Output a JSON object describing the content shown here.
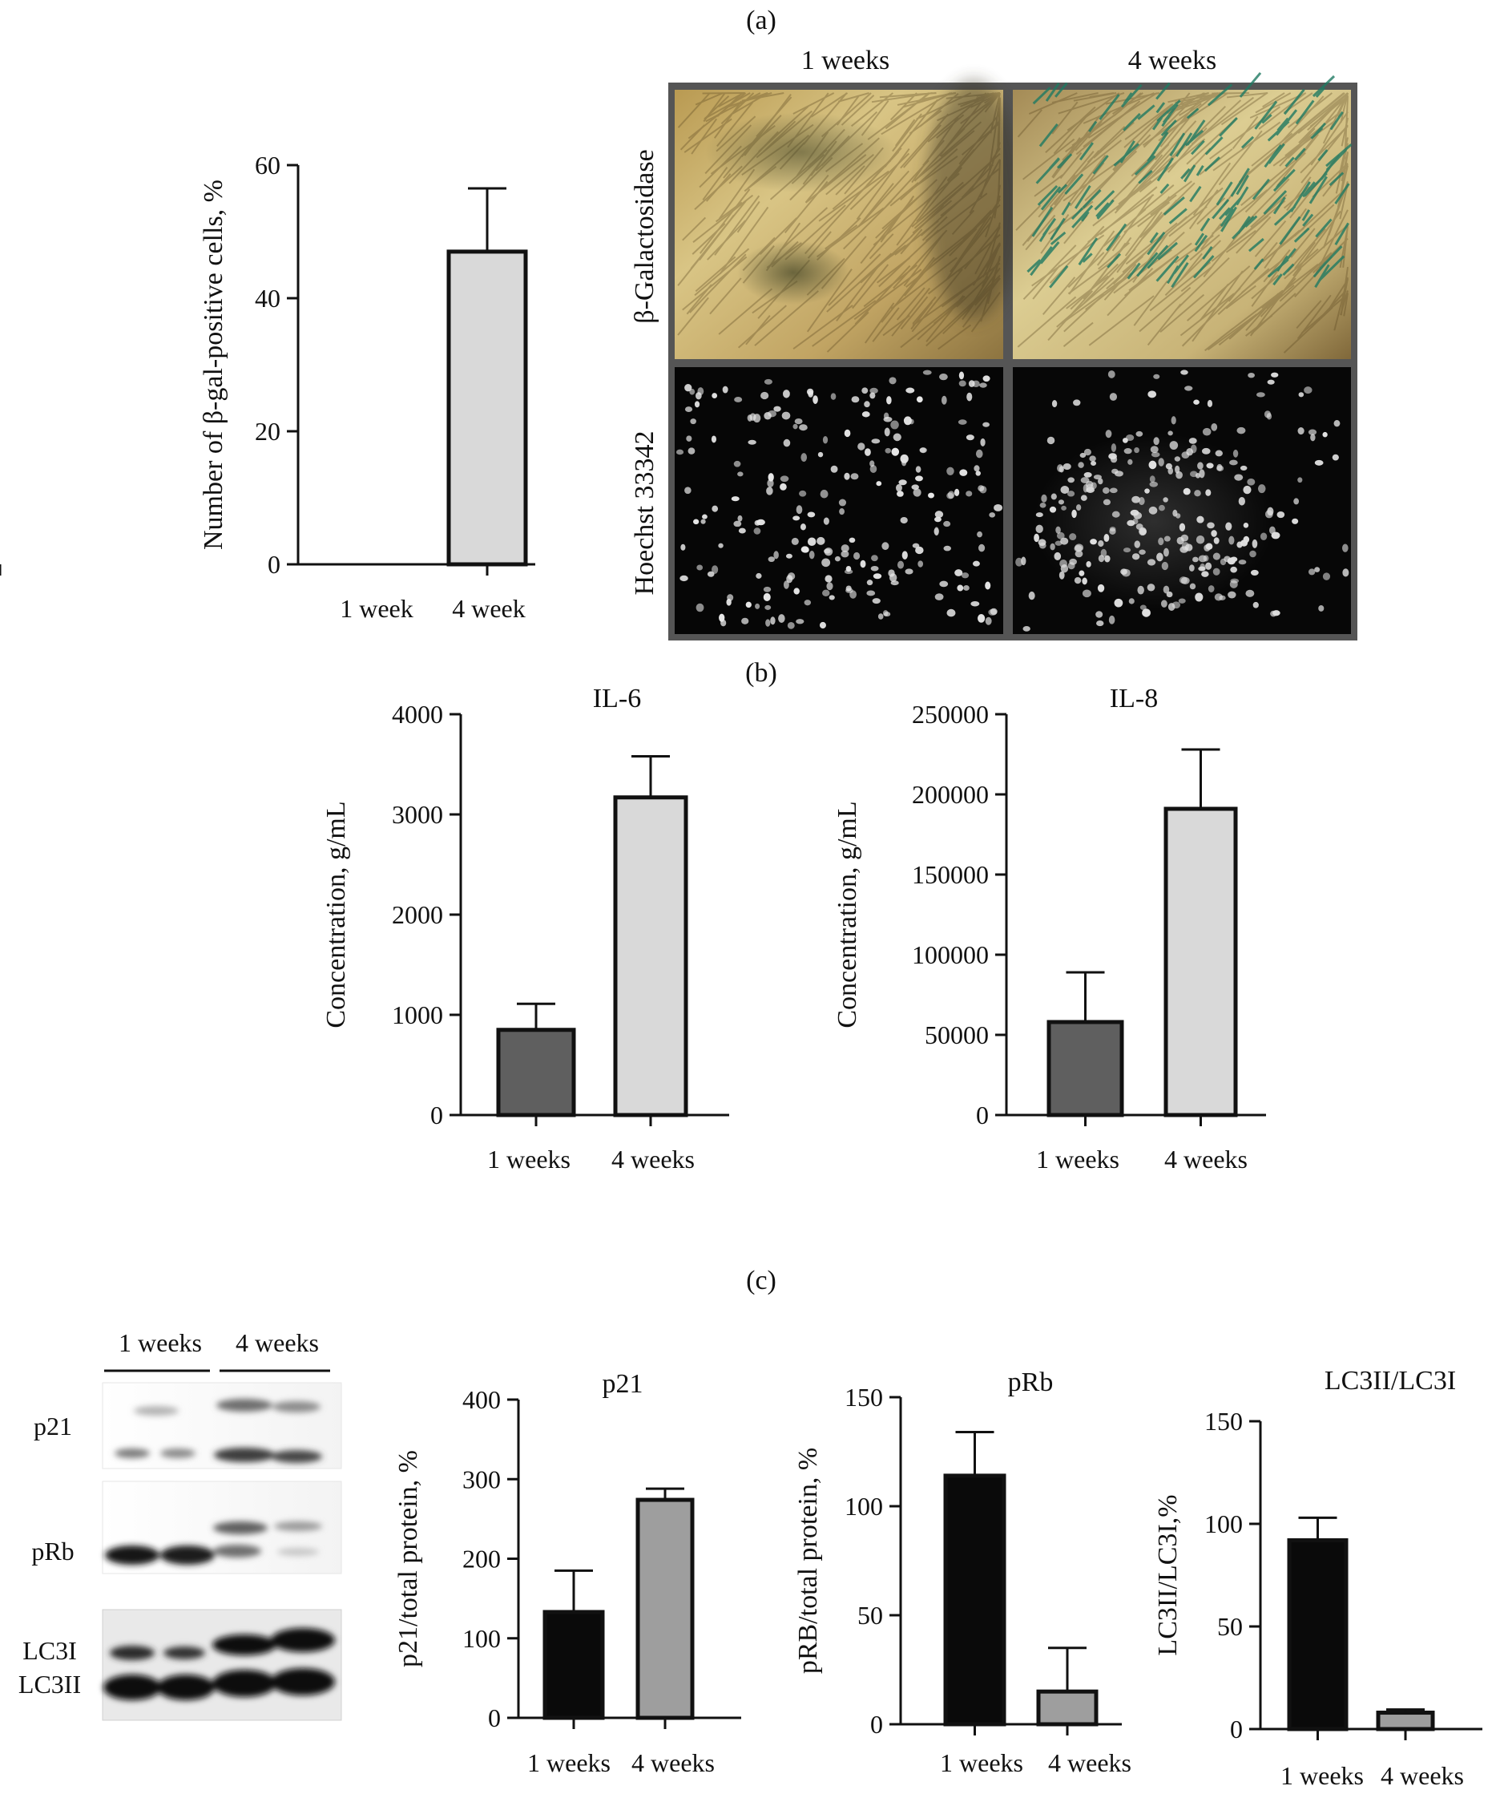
{
  "panel_labels": {
    "a": "(a)",
    "b": "(b)",
    "c": "(c)"
  },
  "micrographs": {
    "col_labels": [
      "1 weeks",
      "4 weeks"
    ],
    "row_labels": [
      "β-Galactosidase",
      "Hoechst 33342"
    ]
  },
  "western_blot": {
    "group_labels": [
      "1 weeks",
      "4 weeks"
    ],
    "band_labels": {
      "p21": "p21",
      "prb": "pRb",
      "lc3i": "LC3I",
      "lc3ii": "LC3II"
    }
  },
  "colors": {
    "light_bar": "#d9d9d9",
    "dark_gray_bar": "#5f5f5f",
    "black_bar": "#0a0a0a",
    "mid_gray_bar": "#9e9e9e",
    "axis": "#111111"
  },
  "chart_data": [
    {
      "id": "bgal",
      "type": "bar",
      "title": "",
      "categories": [
        "1 week",
        "4 week"
      ],
      "values": [
        0,
        47
      ],
      "errors": [
        0,
        9.5
      ],
      "ylabel": "Number of β-gal-positive cells, %",
      "ylim": [
        0,
        60
      ],
      "yticks": [
        0,
        20,
        40,
        60
      ],
      "ytick_labels": [
        "0",
        "20",
        "40",
        "60"
      ],
      "bar_colors": [
        "light_bar",
        "light_bar"
      ]
    },
    {
      "id": "il6",
      "type": "bar",
      "title": "IL-6",
      "categories": [
        "1 weeks",
        "4 weeks"
      ],
      "values": [
        850,
        3170
      ],
      "errors": [
        260,
        410
      ],
      "ylabel": "Concentration, g/mL",
      "ylim": [
        0,
        4000
      ],
      "yticks": [
        0,
        1000,
        2000,
        3000,
        4000
      ],
      "ytick_labels": [
        "0",
        "1000",
        "2000",
        "3000",
        "4000"
      ],
      "bar_colors": [
        "dark_gray_bar",
        "light_bar"
      ]
    },
    {
      "id": "il8",
      "type": "bar",
      "title": "IL-8",
      "categories": [
        "1 weeks",
        "4 weeks"
      ],
      "values": [
        58000,
        191000
      ],
      "errors": [
        31000,
        37000
      ],
      "ylabel": "Concentration, g/mL",
      "ylim": [
        0,
        250000
      ],
      "yticks": [
        0,
        50000,
        100000,
        150000,
        200000,
        250000
      ],
      "ytick_labels": [
        "0",
        "50000",
        "100000",
        "150000",
        "200000",
        "250000"
      ],
      "bar_colors": [
        "dark_gray_bar",
        "light_bar"
      ]
    },
    {
      "id": "p21",
      "type": "bar",
      "title": "p21",
      "categories": [
        "1 weeks",
        "4 weeks"
      ],
      "values": [
        133,
        274
      ],
      "errors": [
        52,
        14
      ],
      "ylabel": "p21/total protein, %",
      "ylim": [
        0,
        400
      ],
      "yticks": [
        0,
        100,
        200,
        300,
        400
      ],
      "ytick_labels": [
        "0",
        "100",
        "200",
        "300",
        "400"
      ],
      "bar_colors": [
        "black_bar",
        "mid_gray_bar"
      ]
    },
    {
      "id": "prb",
      "type": "bar",
      "title": "pRb",
      "categories": [
        "1 weeks",
        "4 weeks"
      ],
      "values": [
        114,
        15
      ],
      "errors": [
        20,
        20
      ],
      "ylabel": "pRB/total protein, %",
      "ylim": [
        0,
        150
      ],
      "yticks": [
        0,
        50,
        100,
        150
      ],
      "ytick_labels": [
        "0",
        "50",
        "100",
        "150"
      ],
      "bar_colors": [
        "black_bar",
        "mid_gray_bar"
      ]
    },
    {
      "id": "lc3",
      "type": "bar",
      "title": "LC3II/LC3I",
      "categories": [
        "1 weeks",
        "4 weeks"
      ],
      "values": [
        92,
        8
      ],
      "errors": [
        11,
        1.5
      ],
      "ylabel": "LC3II/LC3I,%",
      "ylim": [
        0,
        150
      ],
      "yticks": [
        0,
        50,
        100,
        150
      ],
      "ytick_labels": [
        "0",
        "50",
        "100",
        "150"
      ],
      "bar_colors": [
        "black_bar",
        "mid_gray_bar"
      ]
    }
  ]
}
